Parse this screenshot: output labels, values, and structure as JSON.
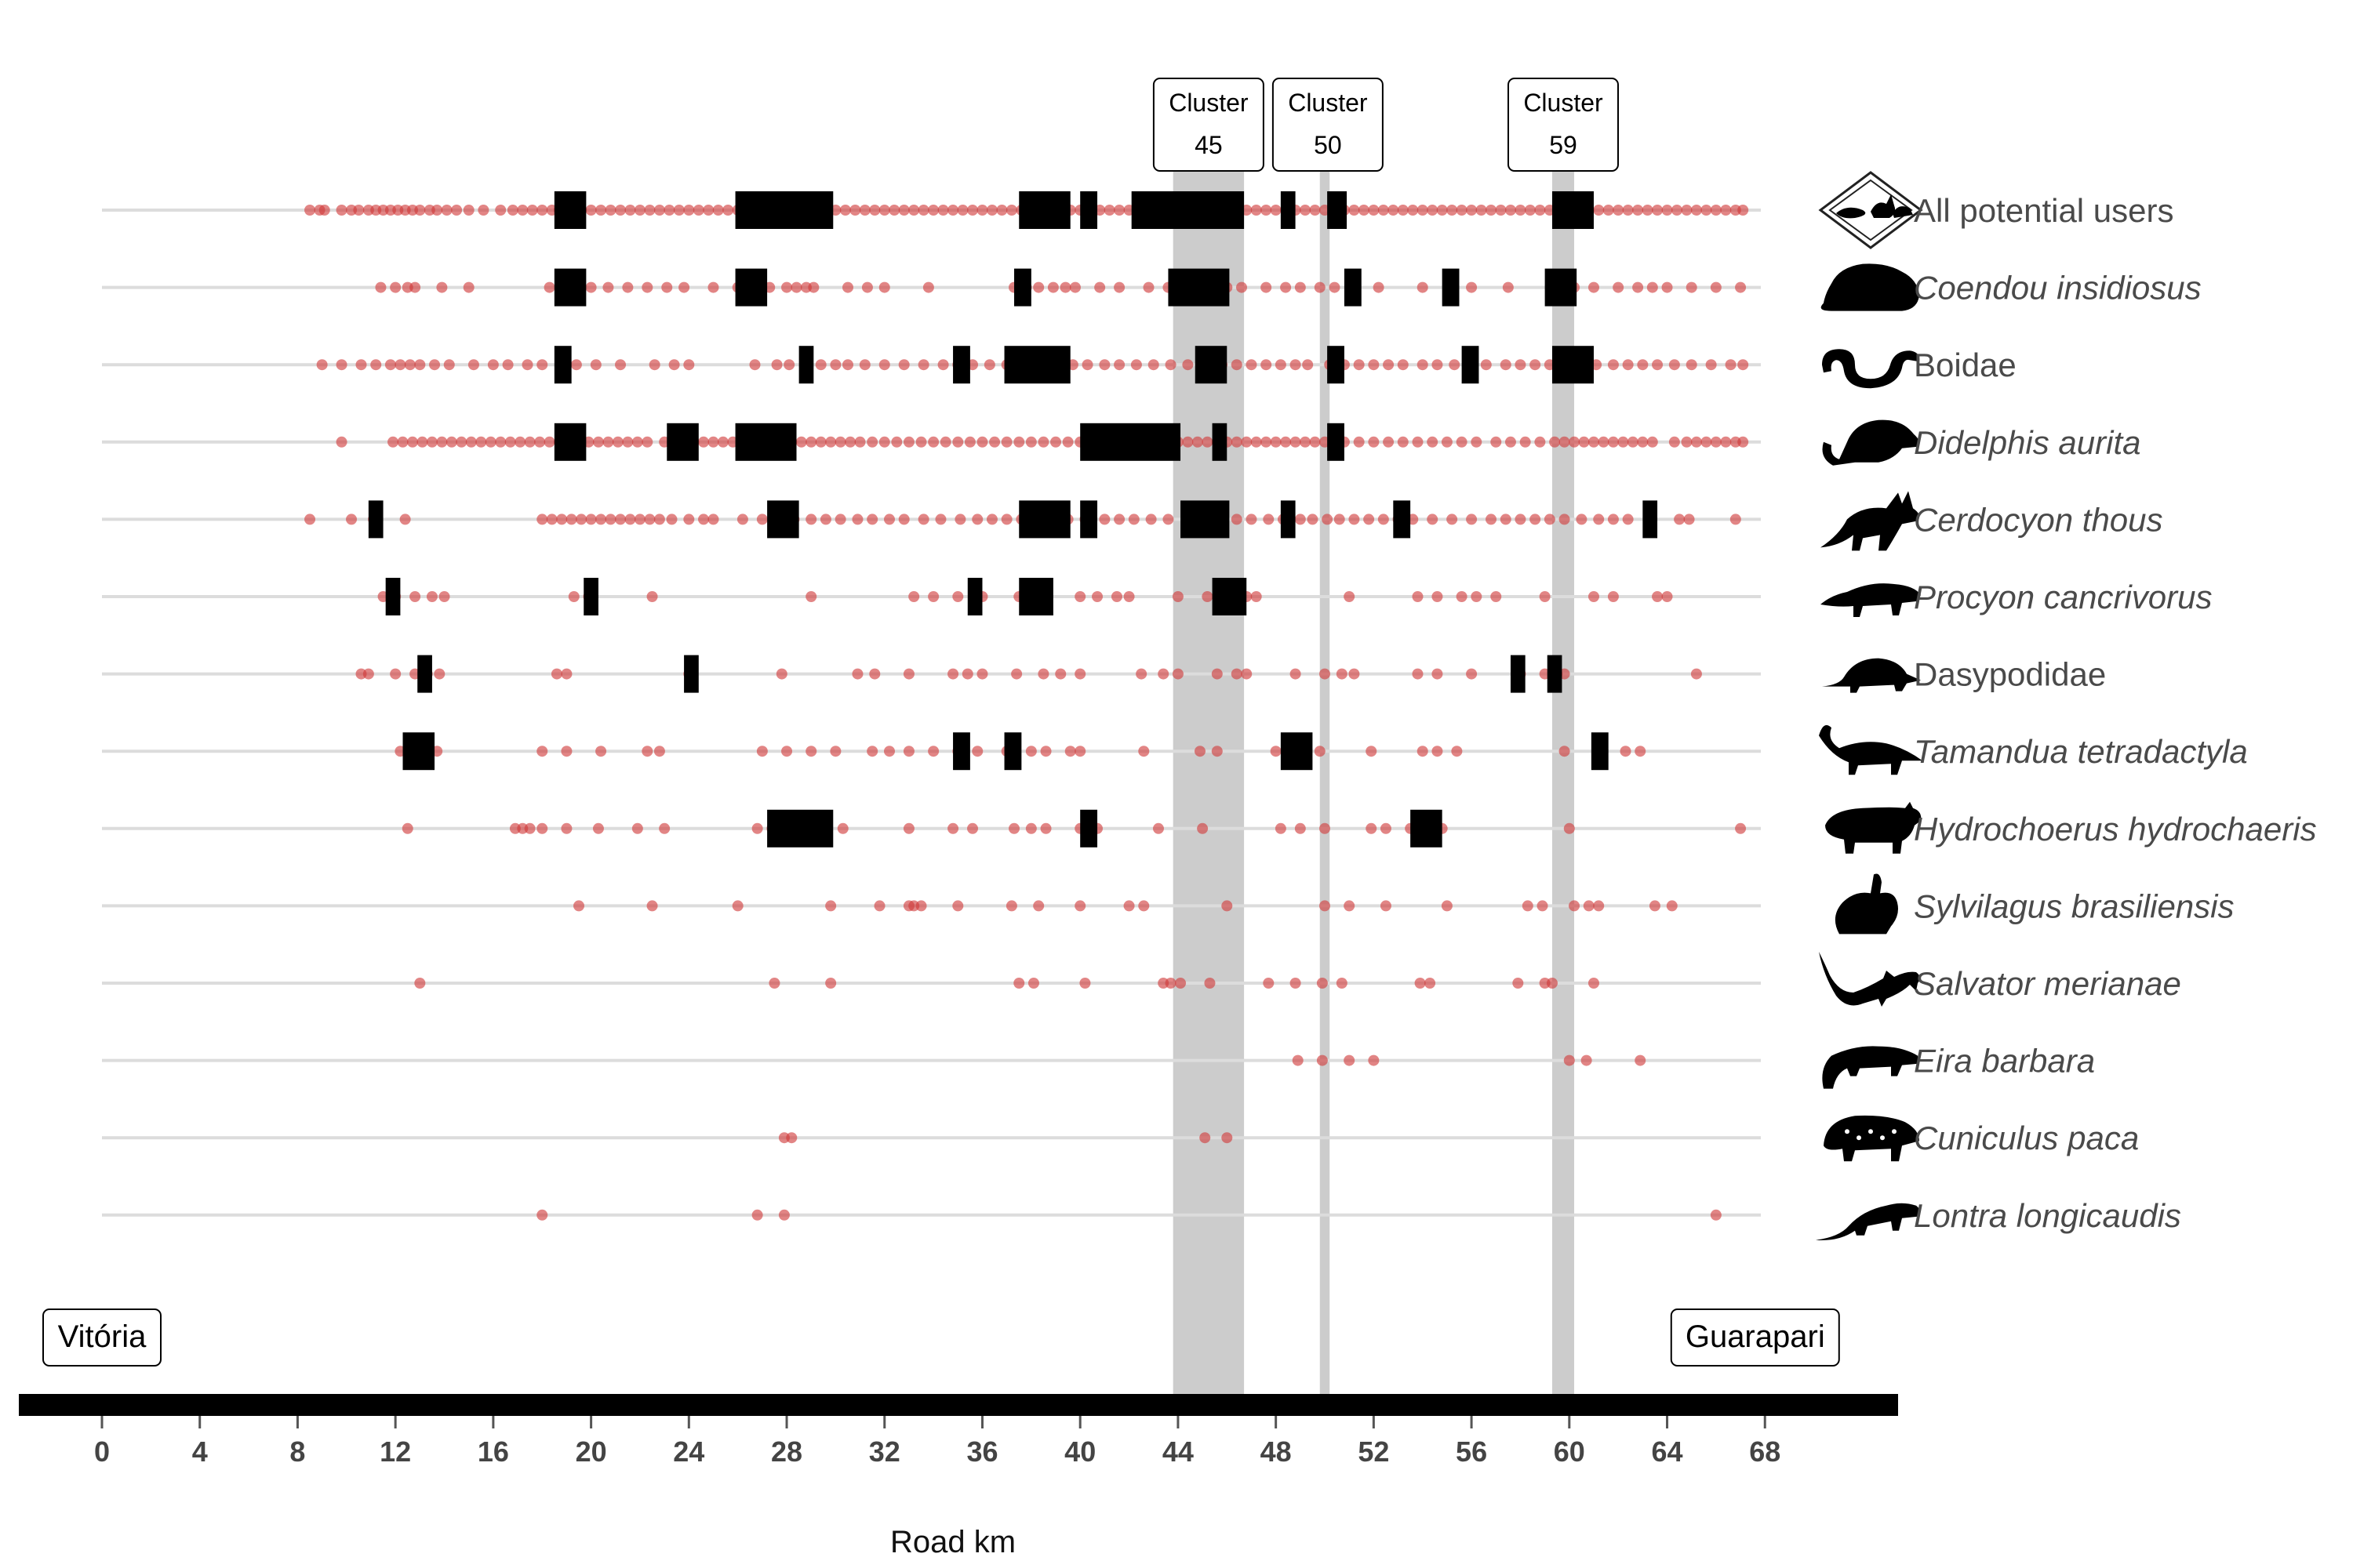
{
  "chart_data": {
    "type": "scatter",
    "xlabel": "Road km",
    "x_ticks": [
      0,
      4,
      8,
      12,
      16,
      20,
      24,
      28,
      32,
      36,
      40,
      44,
      48,
      52,
      56,
      60,
      64,
      68
    ],
    "xlim": [
      -3.5,
      73.5
    ],
    "colors": {
      "point": "#d13a3a",
      "hotspot": "#000000",
      "cluster_band": "#cccccc",
      "row_line": "#dcdcdc",
      "axis_bar": "#000000"
    },
    "endpoints": [
      {
        "label": "Vitória",
        "x": 0
      },
      {
        "label": "Guarapari",
        "x": 67.6
      }
    ],
    "clusters": [
      {
        "title": "Cluster",
        "number": "45",
        "start": 43.8,
        "end": 46.7
      },
      {
        "title": "Cluster",
        "number": "50",
        "start": 49.8,
        "end": 50.2
      },
      {
        "title": "Cluster",
        "number": "59",
        "start": 59.3,
        "end": 60.2
      }
    ],
    "series": [
      {
        "name": "All potential users",
        "italic": false,
        "icon": "multi-animal-icon",
        "points": [
          8.5,
          8.9,
          9.1,
          9.8,
          10.2,
          10.5,
          10.9,
          11.2,
          11.5,
          11.8,
          12.1,
          12.4,
          12.7,
          13.0,
          13.4,
          13.7,
          14.1,
          14.5,
          15.0,
          15.6,
          16.3,
          16.8,
          17.2,
          17.6,
          18.0,
          18.4,
          18.7,
          19.0,
          19.3,
          19.6,
          20.0,
          20.4,
          20.8,
          21.2,
          21.6,
          22.0,
          22.4,
          22.8,
          23.2,
          23.6,
          24.0,
          24.4,
          24.8,
          25.2,
          25.6,
          26.0,
          26.4,
          26.8,
          27.2,
          27.6,
          28.0,
          28.4,
          28.8,
          29.2,
          29.6,
          30.0,
          30.4,
          30.8,
          31.2,
          31.6,
          32.0,
          32.4,
          32.8,
          33.2,
          33.6,
          34.0,
          34.4,
          34.8,
          35.2,
          35.6,
          36.0,
          36.4,
          36.8,
          37.2,
          37.6,
          38.0,
          38.4,
          38.8,
          39.2,
          39.6,
          40.0,
          40.4,
          40.8,
          41.2,
          41.6,
          42.0,
          42.4,
          42.8,
          43.2,
          43.6,
          44.0,
          44.4,
          44.8,
          45.2,
          45.6,
          46.0,
          46.4,
          46.8,
          47.2,
          47.6,
          48.0,
          48.4,
          48.8,
          49.2,
          49.6,
          50.0,
          50.4,
          50.8,
          51.2,
          51.6,
          52.0,
          52.4,
          52.8,
          53.2,
          53.6,
          54.0,
          54.4,
          54.8,
          55.2,
          55.6,
          56.0,
          56.4,
          56.8,
          57.2,
          57.6,
          58.0,
          58.4,
          58.8,
          59.2,
          59.6,
          60.0,
          60.4,
          60.8,
          61.2,
          61.6,
          62.0,
          62.4,
          62.8,
          63.2,
          63.6,
          64.0,
          64.4,
          64.8,
          65.2,
          65.6,
          66.0,
          66.4,
          66.8,
          67.1
        ],
        "hotspots": [
          [
            18.5,
            19.8
          ],
          [
            25.9,
            29.9
          ],
          [
            37.5,
            39.6
          ],
          [
            40.0,
            40.7
          ],
          [
            42.1,
            46.7
          ],
          [
            48.2,
            48.8
          ],
          [
            50.1,
            50.9
          ],
          [
            59.3,
            61.0
          ]
        ]
      },
      {
        "name": "Coendou insidiosus",
        "italic": true,
        "icon": "porcupine-icon",
        "points": [
          11.4,
          12.0,
          12.5,
          12.8,
          13.9,
          15.0,
          18.3,
          19.2,
          20.0,
          20.7,
          21.5,
          22.3,
          23.1,
          23.8,
          25.0,
          26.0,
          26.8,
          27.3,
          28.0,
          28.4,
          28.8,
          29.1,
          30.5,
          31.3,
          32.0,
          33.8,
          37.3,
          37.8,
          38.3,
          38.9,
          39.4,
          39.8,
          40.8,
          41.6,
          42.8,
          43.6,
          44.2,
          44.8,
          45.3,
          46.0,
          46.6,
          47.6,
          48.4,
          49.0,
          49.8,
          50.4,
          51.1,
          52.2,
          54.0,
          55.2,
          56.0,
          57.5,
          59.5,
          60.2,
          61.0,
          62.0,
          62.8,
          63.4,
          64.0,
          65.0,
          66.0,
          67.0
        ],
        "hotspots": [
          [
            18.5,
            19.8
          ],
          [
            25.9,
            27.2
          ],
          [
            37.3,
            38.0
          ],
          [
            43.6,
            46.1
          ],
          [
            50.8,
            51.5
          ],
          [
            54.8,
            55.5
          ],
          [
            59.0,
            60.3
          ]
        ]
      },
      {
        "name": "Boidae",
        "italic": false,
        "icon": "snake-icon",
        "points": [
          9.0,
          9.8,
          10.6,
          11.2,
          11.8,
          12.2,
          12.6,
          13.0,
          13.6,
          14.2,
          15.2,
          16.0,
          16.6,
          17.4,
          18.0,
          18.8,
          19.4,
          20.2,
          21.2,
          22.6,
          23.4,
          24.0,
          26.7,
          27.6,
          28.1,
          28.8,
          29.4,
          30.0,
          30.5,
          31.2,
          32.0,
          32.8,
          33.6,
          34.4,
          35.0,
          35.6,
          36.3,
          37.0,
          37.8,
          38.5,
          39.1,
          39.7,
          40.3,
          41.0,
          41.6,
          42.3,
          43.0,
          43.7,
          44.4,
          45.1,
          45.8,
          46.4,
          47.0,
          47.6,
          48.2,
          48.8,
          49.3,
          50.2,
          50.8,
          51.4,
          52.0,
          52.6,
          53.2,
          54.0,
          54.6,
          55.3,
          56.0,
          56.6,
          57.4,
          58.0,
          58.6,
          59.2,
          59.8,
          60.5,
          61.1,
          61.8,
          62.4,
          63.0,
          63.6,
          64.3,
          65.0,
          65.8,
          66.6,
          67.1
        ],
        "hotspots": [
          [
            18.5,
            19.2
          ],
          [
            28.5,
            29.1
          ],
          [
            34.8,
            35.5
          ],
          [
            36.9,
            39.6
          ],
          [
            44.7,
            46.0
          ],
          [
            50.1,
            50.8
          ],
          [
            55.6,
            56.3
          ],
          [
            59.3,
            61.0
          ]
        ]
      },
      {
        "name": "Didelphis aurita",
        "italic": true,
        "icon": "opossum-icon",
        "points": [
          9.8,
          11.9,
          12.3,
          12.7,
          13.1,
          13.5,
          13.9,
          14.3,
          14.7,
          15.1,
          15.5,
          15.9,
          16.3,
          16.7,
          17.1,
          17.5,
          17.9,
          18.3,
          18.7,
          19.1,
          19.5,
          19.9,
          20.3,
          20.7,
          21.1,
          21.5,
          21.9,
          22.3,
          23.0,
          23.4,
          23.8,
          24.2,
          24.6,
          25.0,
          25.4,
          25.8,
          26.2,
          26.6,
          27.0,
          27.4,
          27.8,
          28.2,
          28.6,
          29.0,
          29.4,
          29.8,
          30.2,
          30.6,
          31.0,
          31.5,
          32.0,
          32.5,
          33.0,
          33.5,
          34.0,
          34.5,
          35.0,
          35.5,
          36.0,
          36.5,
          37.0,
          37.5,
          38.0,
          38.5,
          39.0,
          39.5,
          40.0,
          40.4,
          40.8,
          41.2,
          41.6,
          42.0,
          42.4,
          42.8,
          43.2,
          43.6,
          44.0,
          44.4,
          44.8,
          45.2,
          45.6,
          46.0,
          46.4,
          46.8,
          47.2,
          47.6,
          48.0,
          48.4,
          48.8,
          49.2,
          49.6,
          50.0,
          50.4,
          50.8,
          51.4,
          52.0,
          52.6,
          53.2,
          53.8,
          54.4,
          55.0,
          55.6,
          56.2,
          57.0,
          57.6,
          58.2,
          58.8,
          59.4,
          59.8,
          60.2,
          60.6,
          61.0,
          61.4,
          61.8,
          62.2,
          62.6,
          63.0,
          63.4,
          64.3,
          64.8,
          65.2,
          65.6,
          66.0,
          66.4,
          66.8,
          67.1
        ],
        "hotspots": [
          [
            18.5,
            19.8
          ],
          [
            23.1,
            24.4
          ],
          [
            25.9,
            28.4
          ],
          [
            40.0,
            44.1
          ],
          [
            45.4,
            46.0
          ],
          [
            50.1,
            50.8
          ]
        ]
      },
      {
        "name": "Cerdocyon thous",
        "italic": true,
        "icon": "fox-icon",
        "points": [
          8.5,
          10.2,
          11.1,
          12.4,
          18.0,
          18.4,
          18.8,
          19.2,
          19.6,
          20.0,
          20.4,
          20.8,
          21.2,
          21.6,
          22.0,
          22.4,
          22.8,
          23.3,
          24.0,
          24.6,
          25.0,
          26.2,
          27.0,
          27.7,
          28.3,
          29.0,
          29.6,
          30.2,
          30.9,
          31.5,
          32.2,
          32.8,
          33.6,
          34.3,
          35.1,
          35.8,
          36.4,
          37.0,
          37.6,
          38.2,
          38.8,
          39.5,
          40.2,
          41.0,
          41.6,
          42.2,
          42.9,
          43.6,
          44.4,
          45.1,
          45.8,
          46.4,
          47.0,
          47.7,
          48.3,
          49.0,
          49.5,
          50.1,
          50.6,
          51.2,
          51.8,
          52.4,
          53.0,
          53.6,
          54.4,
          55.2,
          56.0,
          56.8,
          57.4,
          58.0,
          58.6,
          59.2,
          59.8,
          60.5,
          61.2,
          61.8,
          62.4,
          63.3,
          64.5,
          64.9,
          66.8
        ],
        "hotspots": [
          [
            10.9,
            11.5
          ],
          [
            27.2,
            28.5
          ],
          [
            37.5,
            39.6
          ],
          [
            40.0,
            40.7
          ],
          [
            44.1,
            46.1
          ],
          [
            48.2,
            48.8
          ],
          [
            52.8,
            53.5
          ],
          [
            63.0,
            63.6
          ]
        ]
      },
      {
        "name": "Procyon cancrivorus",
        "italic": true,
        "icon": "raccoon-icon",
        "points": [
          11.5,
          12.0,
          12.8,
          13.5,
          14.0,
          19.3,
          19.9,
          22.5,
          29.0,
          33.2,
          34.0,
          35.0,
          36.0,
          37.5,
          38.0,
          38.6,
          40.0,
          40.7,
          41.5,
          42.0,
          44.0,
          45.2,
          45.8,
          46.3,
          46.8,
          47.2,
          51.0,
          53.8,
          54.6,
          55.6,
          56.2,
          57.0,
          59.0,
          61.0,
          61.8,
          63.6,
          64.0
        ],
        "hotspots": [
          [
            11.6,
            12.2
          ],
          [
            19.7,
            20.3
          ],
          [
            35.4,
            36.0
          ],
          [
            37.5,
            38.9
          ],
          [
            45.4,
            46.8
          ]
        ]
      },
      {
        "name": "Dasypodidae",
        "italic": false,
        "icon": "armadillo-icon",
        "points": [
          10.6,
          10.9,
          12.0,
          12.8,
          13.3,
          13.8,
          18.6,
          19.0,
          24.0,
          27.8,
          30.9,
          31.6,
          33.0,
          34.8,
          35.4,
          36.0,
          37.4,
          38.5,
          39.2,
          40.0,
          42.5,
          43.4,
          44.0,
          45.6,
          46.4,
          46.8,
          48.8,
          50.0,
          50.7,
          51.2,
          53.8,
          54.6,
          56.0,
          58.0,
          59.0,
          59.5,
          59.8,
          65.2
        ],
        "hotspots": [
          [
            12.9,
            13.5
          ],
          [
            23.8,
            24.4
          ],
          [
            57.6,
            58.2
          ],
          [
            59.1,
            59.7
          ]
        ]
      },
      {
        "name": "Tamandua tetradactyla",
        "italic": true,
        "icon": "anteater-icon",
        "points": [
          12.2,
          12.7,
          13.2,
          13.7,
          18.0,
          19.0,
          20.4,
          22.3,
          22.8,
          27.0,
          28.0,
          29.0,
          30.0,
          31.5,
          32.2,
          33.0,
          34.0,
          35.0,
          35.8,
          37.0,
          38.0,
          38.6,
          39.6,
          40.0,
          42.6,
          44.9,
          45.6,
          48.0,
          48.6,
          49.2,
          49.8,
          51.9,
          54.0,
          54.6,
          55.4,
          59.8,
          61.2,
          62.3,
          62.9
        ],
        "hotspots": [
          [
            12.3,
            13.6
          ],
          [
            34.8,
            35.5
          ],
          [
            36.9,
            37.6
          ],
          [
            48.2,
            49.5
          ],
          [
            60.9,
            61.6
          ]
        ]
      },
      {
        "name": "Hydrochoerus hydrochaeris",
        "italic": true,
        "icon": "capybara-icon",
        "points": [
          12.5,
          16.9,
          17.2,
          17.5,
          18.0,
          19.0,
          20.3,
          21.9,
          23.0,
          26.8,
          27.4,
          28.0,
          28.6,
          29.2,
          30.3,
          33.0,
          34.8,
          35.6,
          37.3,
          38.0,
          38.6,
          40.0,
          40.7,
          43.2,
          45.0,
          48.2,
          49.0,
          50.0,
          51.9,
          52.5,
          53.5,
          54.2,
          54.8,
          60.0,
          67.0
        ],
        "hotspots": [
          [
            27.2,
            29.9
          ],
          [
            40.0,
            40.7
          ],
          [
            53.5,
            54.8
          ]
        ]
      },
      {
        "name": "Sylvilagus brasiliensis",
        "italic": true,
        "icon": "rabbit-icon",
        "points": [
          19.5,
          22.5,
          26.0,
          29.8,
          31.8,
          33.0,
          33.2,
          33.5,
          35.0,
          37.2,
          38.3,
          40.0,
          42.0,
          42.6,
          46.0,
          50.0,
          51.0,
          52.5,
          55.0,
          58.3,
          58.9,
          60.2,
          60.8,
          61.2,
          63.5,
          64.2
        ],
        "hotspots": []
      },
      {
        "name": "Salvator merianae",
        "italic": true,
        "icon": "lizard-icon",
        "points": [
          13.0,
          27.5,
          29.8,
          37.5,
          38.1,
          40.2,
          43.4,
          43.7,
          44.1,
          45.3,
          47.7,
          48.8,
          49.9,
          50.7,
          53.9,
          54.3,
          57.9,
          59.0,
          59.3,
          61.0
        ],
        "hotspots": []
      },
      {
        "name": "Eira barbara",
        "italic": true,
        "icon": "tayra-icon",
        "points": [
          48.9,
          49.9,
          51.0,
          52.0,
          60.0,
          60.7,
          62.9
        ],
        "hotspots": []
      },
      {
        "name": "Cuniculus paca",
        "italic": true,
        "icon": "paca-icon",
        "points": [
          27.9,
          28.2,
          45.1,
          46.0
        ],
        "hotspots": []
      },
      {
        "name": "Lontra longicaudis",
        "italic": true,
        "icon": "otter-icon",
        "points": [
          18.0,
          26.8,
          27.9,
          66.0
        ],
        "hotspots": []
      }
    ]
  }
}
